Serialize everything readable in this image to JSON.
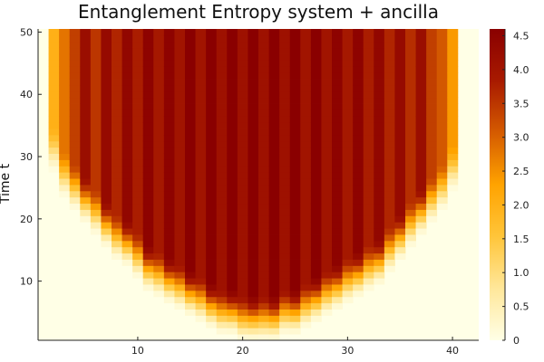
{
  "chart_data": {
    "type": "heatmap",
    "title": "Entanglement Entropy system + ancilla",
    "xlabel": "",
    "ylabel": "Time t",
    "xlim": [
      0.5,
      42.5
    ],
    "ylim": [
      0.5,
      50.5
    ],
    "x_ticks": [
      10,
      20,
      30,
      40
    ],
    "y_ticks": [
      10,
      20,
      30,
      40,
      50
    ],
    "colorbar": {
      "min": 0,
      "max": 4.6,
      "ticks": [
        0,
        0.5,
        1.0,
        1.5,
        2.0,
        2.5,
        3.0,
        3.5,
        4.0,
        4.5
      ],
      "tick_labels": [
        "0",
        "0.5",
        "1.0",
        "1.5",
        "2.0",
        "2.5",
        "3.0",
        "3.5",
        "4.0",
        "4.5"
      ],
      "colormap": "heat",
      "stops": [
        "#ffffe6",
        "#ffe79a",
        "#ffc53a",
        "#ffa300",
        "#d55b00",
        "#a81a00",
        "#8a0000"
      ]
    },
    "grid": true,
    "columns": {
      "x": [
        1,
        2,
        3,
        4,
        5,
        6,
        7,
        8,
        9,
        10,
        11,
        12,
        13,
        14,
        15,
        16,
        17,
        18,
        19,
        20,
        21,
        22,
        23,
        24,
        25,
        26,
        27,
        28,
        29,
        30,
        31,
        32,
        33,
        34,
        35,
        36,
        37,
        38,
        39,
        40,
        41,
        42
      ],
      "saturation_value": [
        0.0,
        2.0,
        2.8,
        3.4,
        4.2,
        3.5,
        4.3,
        3.7,
        4.4,
        3.8,
        4.5,
        3.9,
        4.5,
        4.0,
        4.6,
        4.0,
        4.6,
        4.1,
        4.6,
        4.1,
        4.6,
        4.1,
        4.6,
        4.1,
        4.6,
        4.0,
        4.6,
        4.0,
        4.5,
        3.9,
        4.5,
        3.8,
        4.4,
        3.7,
        4.3,
        3.6,
        4.2,
        3.4,
        3.1,
        2.4,
        0.0,
        0.0
      ],
      "onset_time": [
        0,
        27,
        23,
        21,
        19,
        17,
        15,
        13,
        12,
        10,
        8,
        7,
        6,
        5,
        4,
        3,
        2,
        1,
        1,
        0,
        0,
        0,
        0,
        1,
        1,
        2,
        3,
        4,
        5,
        6,
        7,
        8,
        9,
        11,
        13,
        15,
        17,
        19,
        21,
        24,
        0,
        0
      ]
    }
  }
}
